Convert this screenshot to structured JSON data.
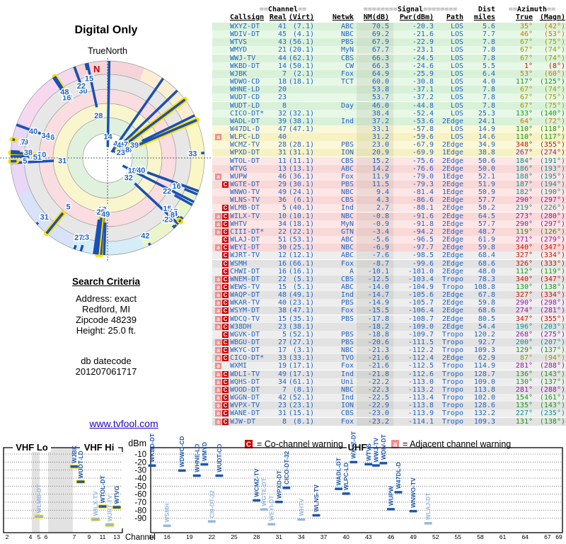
{
  "radar": {
    "title": "Digital Only",
    "true_north_label": "TrueNorth",
    "north_marker": "N"
  },
  "search_criteria": {
    "title": "Search Criteria",
    "lines": [
      "Address: exact",
      "Redford, MI",
      "Zipcode 48239",
      "Height: 25.0 ft."
    ],
    "datecode_label": "db datecode",
    "datecode": "201207061717"
  },
  "link": {
    "text": "www.tvfool.com"
  },
  "table": {
    "header_row1": {
      "channel": "==Channel==",
      "signal": "========Signal========",
      "dist": "Dist",
      "azimuth": "==Azimuth=="
    },
    "header_row2": {
      "callsign": "Callsign",
      "real": "Real",
      "virt": "(Virt)",
      "netwk": "Netwk",
      "nm": "NM(dB)",
      "pwr": "Pwr(dBm)",
      "path": "Path",
      "miles": "miles",
      "true": "True",
      "magn": "(Magn)"
    },
    "rows": [
      [
        "WXYZ-DT",
        41,
        "7.1",
        "ABC",
        70.5,
        -20.3,
        "LOS",
        5.6,
        35,
        42,
        ""
      ],
      [
        "WDIV-DT",
        45,
        "4.1",
        "NBC",
        69.2,
        -21.6,
        "LOS",
        7.7,
        46,
        53,
        ""
      ],
      [
        "WTVS",
        43,
        "56.1",
        "PBS",
        67.9,
        -22.9,
        "LOS",
        7.8,
        67,
        75,
        ""
      ],
      [
        "WMYD",
        21,
        "20.1",
        "MyN",
        67.7,
        -23.1,
        "LOS",
        7.8,
        67,
        74,
        ""
      ],
      [
        "WWJ-TV",
        44,
        "62.1",
        "CBS",
        66.3,
        -24.5,
        "LOS",
        7.8,
        67,
        74,
        ""
      ],
      [
        "WKBD-DT",
        14,
        "50.1",
        "CW",
        66.3,
        -24.6,
        "LOS",
        5.5,
        1,
        8,
        ""
      ],
      [
        "WJBK",
        7,
        "2.1",
        "Fox",
        64.9,
        -25.9,
        "LOS",
        6.4,
        53,
        60,
        ""
      ],
      [
        "WDWO-CD",
        18,
        "18.1",
        "TCT",
        60.0,
        -30.8,
        "LOS",
        4.0,
        117,
        125,
        ""
      ],
      [
        "WHNE-LD",
        20,
        "",
        "",
        53.8,
        -37.1,
        "LOS",
        7.8,
        67,
        74,
        ""
      ],
      [
        "WUDT-CD",
        23,
        "",
        "",
        53.7,
        -37.2,
        "LOS",
        7.8,
        67,
        75,
        ""
      ],
      [
        "WUDT-LD",
        8,
        "",
        "Day",
        46.0,
        -44.8,
        "LOS",
        7.8,
        67,
        75,
        ""
      ],
      [
        "CICO-DT*",
        32,
        "32.1",
        "",
        38.4,
        -52.4,
        "LOS",
        25.3,
        133,
        140,
        ""
      ],
      [
        "WADL-DT",
        39,
        "38.1",
        "Ind",
        37.2,
        -53.6,
        "2Edge",
        24.1,
        64,
        72,
        ""
      ],
      [
        "W47DL-D",
        47,
        "47.1",
        "",
        33.1,
        -57.8,
        "LOS",
        14.9,
        110,
        118,
        ""
      ],
      [
        "WLPC-LD",
        40,
        "",
        "",
        31.2,
        -59.6,
        "LOS",
        14.6,
        110,
        117,
        "a"
      ],
      [
        "WCMZ-TV",
        28,
        "28.1",
        "PBS",
        23.0,
        -67.9,
        "2Edge",
        34.9,
        348,
        355,
        ""
      ],
      [
        "WPXD-DT",
        31,
        "31.1",
        "ION",
        20.9,
        -69.9,
        "1Edge",
        38.8,
        267,
        274,
        ""
      ],
      [
        "WTOL-DT",
        11,
        "11.1",
        "CBS",
        15.2,
        -75.6,
        "2Edge",
        50.6,
        184,
        191,
        ""
      ],
      [
        "WTVG",
        13,
        "13.1",
        "ABC",
        14.2,
        -76.6,
        "2Edge",
        50.0,
        186,
        193,
        ""
      ],
      [
        "WUPW",
        46,
        "36.1",
        "Fox",
        11.9,
        -79.0,
        "1Edge",
        52.1,
        188,
        195,
        "a"
      ],
      [
        "WGTE-DT",
        29,
        "30.1",
        "PBS",
        11.5,
        -79.3,
        "2Edge",
        51.9,
        187,
        194,
        "C"
      ],
      [
        "WNWO-TV",
        49,
        "24.1",
        "NBC",
        9.4,
        -81.4,
        "1Edge",
        50.9,
        182,
        190,
        ""
      ],
      [
        "WLNS-TV",
        36,
        "6.1",
        "CBS",
        4.3,
        -86.6,
        "2Edge",
        57.7,
        290,
        297,
        ""
      ],
      [
        "WLMB-DT",
        5,
        "40.1",
        "Ind",
        2.7,
        -88.1,
        "2Edge",
        58.2,
        219,
        226,
        "C"
      ],
      [
        "WILX-TV",
        10,
        "10.1",
        "NBC",
        -0.8,
        -91.6,
        "2Edge",
        64.5,
        273,
        280,
        "aC"
      ],
      [
        "WHTV",
        34,
        "18.1",
        "MyN",
        -0.9,
        -91.8,
        "2Edge",
        57.7,
        290,
        297,
        "aC"
      ],
      [
        "CIII-DT*",
        22,
        "22.1",
        "GTN",
        -3.4,
        -94.2,
        "2Edge",
        48.7,
        119,
        126,
        "aC"
      ],
      [
        "WLAJ-DT",
        51,
        "53.1",
        "ABC",
        -5.6,
        -96.5,
        "2Edge",
        61.9,
        271,
        279,
        "C"
      ],
      [
        "WEYI-DT",
        30,
        "25.1",
        "NBC",
        -6.9,
        -97.7,
        "2Edge",
        59.8,
        340,
        347,
        "aC"
      ],
      [
        "WJRT-TV",
        12,
        "12.1",
        "ABC",
        -7.6,
        -98.5,
        "2Edge",
        68.4,
        327,
        334,
        "C"
      ],
      [
        "WSMH",
        16,
        "66.1",
        "Fox",
        -8.7,
        -99.6,
        "2Edge",
        68.6,
        326,
        333,
        "C"
      ],
      [
        "CHWI-DT",
        16,
        "16.1",
        "A",
        -10.1,
        -101.0,
        "2Edge",
        48.0,
        112,
        119,
        "C"
      ],
      [
        "WNEM-DT",
        22,
        "5.1",
        "CBS",
        -12.5,
        -103.4,
        "Tropo",
        78.3,
        340,
        347,
        "aC"
      ],
      [
        "WEWS-TV",
        15,
        "5.1",
        "ABC",
        -14.0,
        -104.9,
        "Tropo",
        108.8,
        130,
        138,
        "aC"
      ],
      [
        "WAQP-DT",
        48,
        "49.1",
        "Ind",
        -14.7,
        -105.6,
        "2Edge",
        67.8,
        327,
        334,
        "aC"
      ],
      [
        "WKAR-TV",
        40,
        "23.1",
        "PBS",
        -14.9,
        -105.7,
        "2Edge",
        59.8,
        290,
        298,
        "aC"
      ],
      [
        "WSYM-DT",
        38,
        "47.1",
        "Fox",
        -15.5,
        -106.4,
        "2Edge",
        68.6,
        274,
        281,
        "aC"
      ],
      [
        "WDCQ-TV",
        15,
        "35.1",
        "PBS",
        -17.8,
        -108.7,
        "2Edge",
        80.5,
        347,
        355,
        "aC"
      ],
      [
        "W38DH",
        23,
        "38.1",
        "",
        -18.2,
        -109.0,
        "2Edge",
        54.4,
        196,
        203,
        "aC"
      ],
      [
        "WGVK-DT",
        5,
        "52.1",
        "PBS",
        -18.8,
        -109.7,
        "Tropo",
        120.2,
        268,
        275,
        "C"
      ],
      [
        "WBGU-DT",
        27,
        "27.1",
        "PBS",
        -20.6,
        -111.5,
        "Tropo",
        92.7,
        200,
        207,
        "aC"
      ],
      [
        "WKYC-DT",
        17,
        "3.1",
        "NBC",
        -21.3,
        -112.2,
        "Tropo",
        109.3,
        129,
        137,
        "aC"
      ],
      [
        "CICO-DT*",
        33,
        "33.1",
        "TVO",
        -21.6,
        -112.4,
        "2Edge",
        62.9,
        87,
        94,
        "aC"
      ],
      [
        "WXMI",
        19,
        "17.1",
        "Fox",
        -21.6,
        -112.5,
        "Tropo",
        114.9,
        281,
        288,
        "a"
      ],
      [
        "WDLI-TV",
        49,
        "17.1",
        "Ind",
        -21.8,
        -112.6,
        "Tropo",
        128.7,
        136,
        143,
        "aC"
      ],
      [
        "WQHS-DT",
        34,
        "61.1",
        "Uni",
        -22.2,
        -113.0,
        "Tropo",
        109.0,
        130,
        137,
        "aC"
      ],
      [
        "WOOD-DT",
        7,
        "8.1",
        "NBC",
        -22.3,
        -113.2,
        "Tropo",
        113.8,
        281,
        288,
        "aC"
      ],
      [
        "WGGN-DT",
        42,
        "52.1",
        "Ind",
        -22.5,
        -113.4,
        "Tropo",
        102.0,
        154,
        161,
        "aC"
      ],
      [
        "WVPX-TV",
        23,
        "23.1",
        "ION",
        -22.9,
        -113.8,
        "Tropo",
        128.6,
        135,
        143,
        "aC"
      ],
      [
        "WANE-DT",
        31,
        "15.1",
        "CBS",
        -23.0,
        -113.9,
        "Tropo",
        132.2,
        227,
        235,
        "aC"
      ],
      [
        "WJW-DT",
        8,
        "8.1",
        "Fox",
        -23.2,
        -114.1,
        "Tropo",
        109.3,
        131,
        138,
        "aC"
      ]
    ]
  },
  "legend": {
    "co_letter": "C",
    "co_text": "= Co-channel warning",
    "adj_letter": "a",
    "adj_text": "= Adjacent channel warning"
  },
  "charts": {
    "vhf_lo_label": "VHF Lo",
    "vhf_hi_label": "VHF Hi",
    "uhf_label": "UHF",
    "dbm_label": "dBm",
    "channel_label": "Channel",
    "dbm_ticks": [
      -10,
      -20,
      -30,
      -40,
      -50,
      -60,
      -70,
      -80,
      -90
    ],
    "vhf_ticks": [
      2,
      4,
      5,
      6,
      7,
      9,
      11,
      13
    ],
    "uhf_ticks": [
      14,
      16,
      19,
      22,
      25,
      28,
      31,
      34,
      37,
      40,
      43,
      46,
      49,
      52,
      55,
      58,
      61,
      64,
      67,
      69
    ]
  },
  "colors": {
    "table_text": "#1f63c5",
    "link": "#2200cc",
    "warn_co": "#cc0000",
    "warn_adj": "#f08d8d",
    "marker_dark": "#1c56b0",
    "marker_light": "#97b7de",
    "spoke_blue": "#1a50b4",
    "vhf_outline": "#ffdf00",
    "az_red": "#cc1100",
    "az_orange": "#cc7700",
    "az_olive": "#9a9a00",
    "az_green": "#159915",
    "az_teal": "#0b8f8f",
    "az_purple": "#9911aa",
    "row_green": "#d9f1d9",
    "row_green_alt": "#e7f8e7",
    "row_yellow": "#f6f2c4",
    "row_yellow_alt": "#fbf8d9",
    "row_pink": "#f9d8d8",
    "row_pink_alt": "#fce6e6",
    "row_gray": "#e2e2e2",
    "row_gray_alt": "#eeeeee",
    "sector_n": "#f6d5da",
    "sector_ne": "#fceed2",
    "sector_e": "#fbf7c4",
    "sector_se": "#e9f5cb",
    "sector_s": "#d4edf6",
    "sector_sw": "#d8e2f8",
    "sector_w": "#e9d7f7",
    "sector_nw": "#f6d8ef"
  }
}
